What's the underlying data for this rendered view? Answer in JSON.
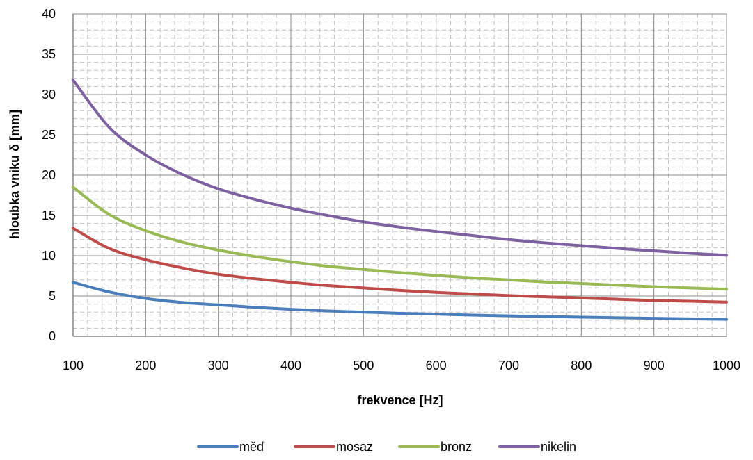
{
  "chart_data": {
    "type": "line",
    "title": "",
    "xlabel": "frekvence [Hz]",
    "ylabel": "hloubka vniku δ [mm]",
    "xlim": [
      100,
      1000
    ],
    "ylim": [
      0,
      40
    ],
    "x_ticks": [
      "100",
      "200",
      "300",
      "400",
      "500",
      "600",
      "700",
      "800",
      "900",
      "1000"
    ],
    "y_ticks": [
      "0",
      "5",
      "10",
      "15",
      "20",
      "25",
      "30",
      "35",
      "40"
    ],
    "grid": true,
    "legend_position": "bottom",
    "x": [
      100,
      150,
      200,
      250,
      300,
      350,
      400,
      450,
      500,
      550,
      600,
      650,
      700,
      750,
      800,
      850,
      900,
      950,
      1000
    ],
    "series": [
      {
        "name": "měď",
        "color": "#4a7ebb",
        "values": [
          6.7,
          5.5,
          4.7,
          4.2,
          3.9,
          3.6,
          3.35,
          3.15,
          3.0,
          2.85,
          2.75,
          2.63,
          2.53,
          2.45,
          2.37,
          2.3,
          2.23,
          2.17,
          2.1
        ]
      },
      {
        "name": "mosaz",
        "color": "#be4b48",
        "values": [
          13.4,
          10.9,
          9.5,
          8.5,
          7.7,
          7.15,
          6.7,
          6.3,
          6.0,
          5.7,
          5.45,
          5.25,
          5.05,
          4.9,
          4.75,
          4.6,
          4.45,
          4.35,
          4.25
        ]
      },
      {
        "name": "bronz",
        "color": "#98b954",
        "values": [
          18.5,
          15.1,
          13.1,
          11.7,
          10.7,
          9.9,
          9.25,
          8.7,
          8.3,
          7.9,
          7.55,
          7.25,
          7.0,
          6.75,
          6.55,
          6.35,
          6.15,
          6.0,
          5.85
        ]
      },
      {
        "name": "nikelin",
        "color": "#7d60a0",
        "values": [
          31.8,
          25.9,
          22.5,
          20.1,
          18.3,
          17.0,
          15.9,
          15.0,
          14.2,
          13.55,
          13.0,
          12.5,
          12.0,
          11.6,
          11.25,
          10.9,
          10.6,
          10.3,
          10.05
        ]
      }
    ]
  }
}
